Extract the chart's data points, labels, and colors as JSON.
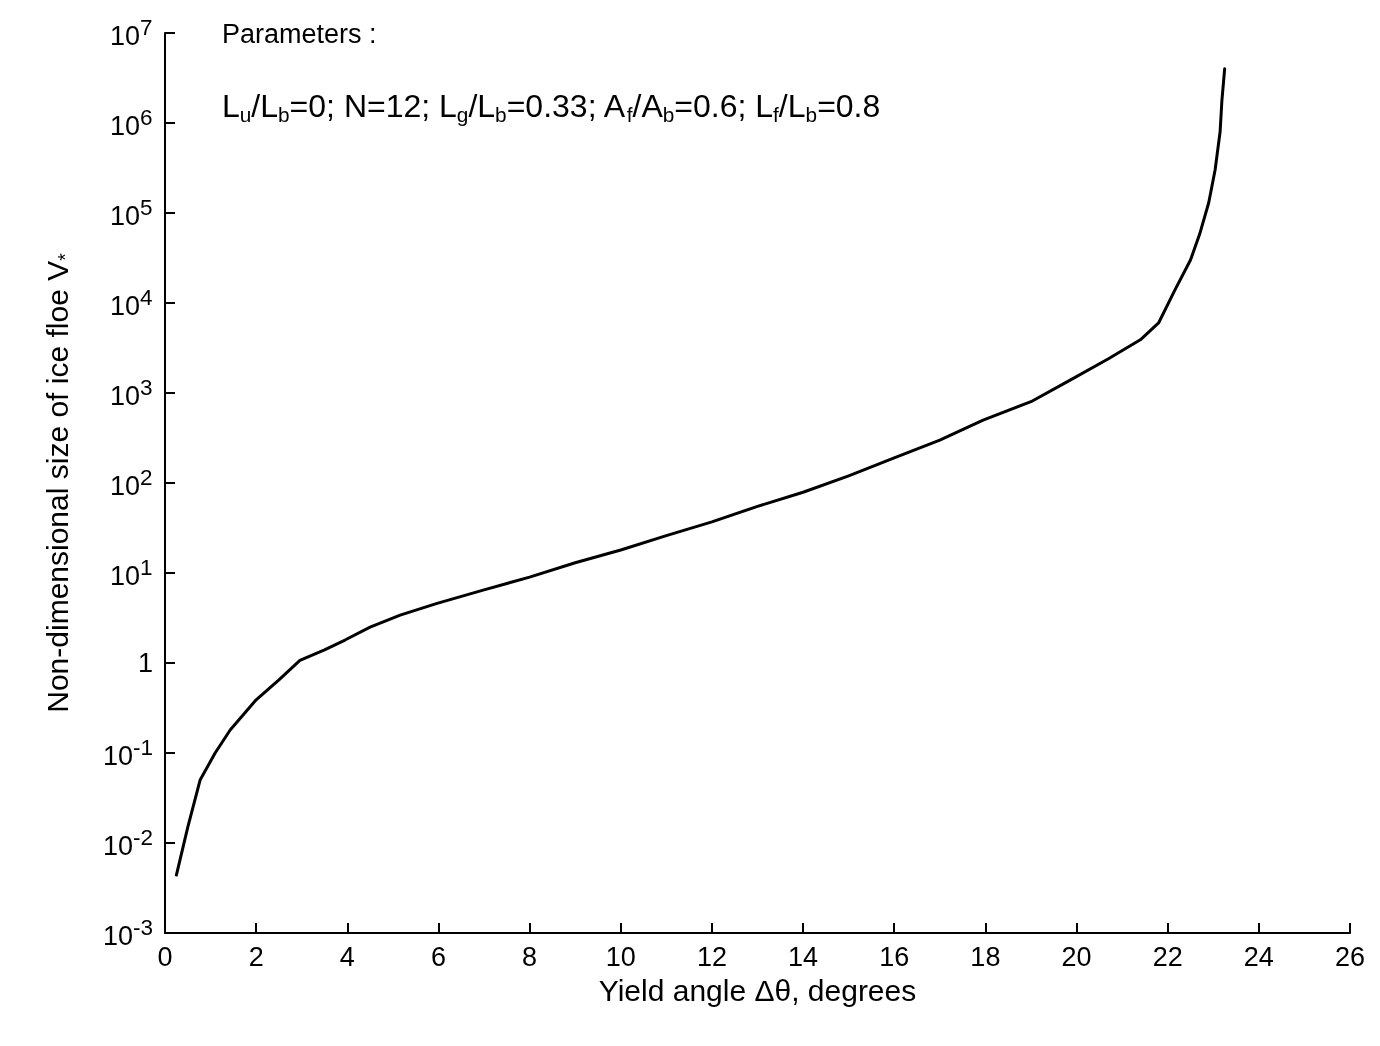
{
  "chart_data": {
    "type": "line",
    "xlabel": "Yield angle Δθ, degrees",
    "ylabel": "Non-dimensional size of ice floe V$_{*}$",
    "log": "y",
    "grid": false,
    "annotations": [
      "Parameters :",
      "L$_{u}$/L$_{b}$=0; N=12; L$_{g}$/L$_{b}$=0.33; A$_{f}$/A$_{b}$=0.6; L$_{f}$/L$_{b}$=0.8"
    ],
    "xlim": [
      0,
      26
    ],
    "xticks": [
      0,
      2,
      4,
      6,
      8,
      10,
      12,
      14,
      16,
      18,
      20,
      22,
      24,
      26
    ],
    "ylim": [
      0.001,
      10000000
    ],
    "yticks": [
      {
        "value": 0.001,
        "label": "10$^{-3}$"
      },
      {
        "value": 0.01,
        "label": "10$^{-2}$"
      },
      {
        "value": 0.1,
        "label": "10$^{-1}$"
      },
      1,
      {
        "value": 10,
        "label": "10$^{1}$"
      },
      {
        "value": 100,
        "label": "10$^{2}$"
      },
      {
        "value": 1000,
        "label": "10$^{3}$"
      },
      {
        "value": 10000,
        "label": "10$^{4}$"
      },
      {
        "value": 100000,
        "label": "10$^{5}$"
      },
      {
        "value": 1000000,
        "label": "10$^{6}$"
      },
      {
        "value": 10000000,
        "label": "10$^{7}$"
      }
    ],
    "series": [
      {
        "color": "#000000",
        "x": [
          0.25,
          0.5,
          0.77,
          1.1,
          1.43,
          2.0,
          2.5,
          2.96,
          3.5,
          3.95,
          4.5,
          5.16,
          5.97,
          7,
          8,
          9,
          10,
          11,
          12,
          13,
          14,
          15,
          16,
          17,
          17.95,
          19,
          19.85,
          20.7,
          21.4,
          21.8,
          22.16,
          22.5,
          22.7,
          22.9,
          23.04,
          23.15,
          23.19,
          23.25
        ],
        "values": [
          0.0044,
          0.015,
          0.05,
          0.1,
          0.18,
          0.39,
          0.65,
          1.07,
          1.4,
          1.8,
          2.5,
          3.4,
          4.6,
          6.5,
          9,
          13,
          18,
          26,
          37,
          55,
          79,
          120,
          190,
          300,
          500,
          800,
          1380,
          2400,
          3900,
          6000,
          14000,
          30000,
          58000,
          130000,
          300000,
          800000,
          1800000,
          4000000
        ]
      }
    ]
  }
}
